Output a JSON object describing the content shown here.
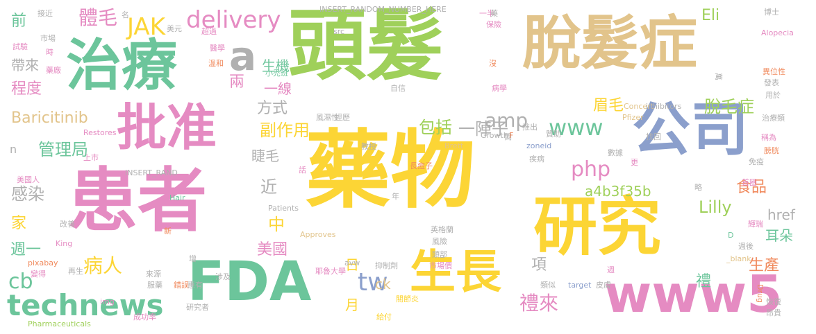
{
  "colors": {
    "green": "#6cc59b",
    "olive": "#9fd05a",
    "tan": "#e2c48b",
    "yellow": "#fcd535",
    "pink": "#e58bc2",
    "blue": "#8b9fcc",
    "orange": "#f08a5d",
    "gray": "#b0b0b0"
  },
  "words": [
    "頭髮",
    "脫髮症",
    "治療",
    "藥物",
    "患者",
    "研究",
    "公司",
    "批准",
    "FDA",
    "生長",
    "www5",
    "a",
    "delivery",
    "JAK",
    "amp",
    "www",
    "php",
    "tw",
    "technews",
    "Baricitinib",
    "副作用",
    "cb",
    "一陣子",
    "管理局",
    "感染",
    "包括",
    "近",
    "Lilly",
    "a4b3f35b",
    "眉毛",
    "脫毛症",
    "食品",
    "生機",
    "方式",
    "睫毛",
    "兩",
    "一線",
    "程度",
    "帶來",
    "前",
    "家",
    "週一",
    "病人",
    "美國",
    "中",
    "日",
    "月",
    "ck",
    "項",
    "禮來",
    "禮",
    "生產",
    "耳朵",
    "href",
    "Eli",
    "體毛",
    "n",
    "INSERT_RANDOM_NUMBER_HERE",
    "INSERT_RAND",
    "接近",
    "市場",
    "試驗",
    "時",
    "藥廠",
    "美元",
    "超過",
    "醫學",
    "溫和",
    "名",
    "小禿班",
    "src",
    "保險",
    "沒",
    "病學",
    "自信",
    "風濕性",
    "經歷",
    "推出",
    "贊助",
    "找回",
    "Concert",
    "Pfizer",
    "inhibitors",
    "Growth",
    "Brett",
    "間",
    "zoneid",
    "疾病",
    "數據",
    "更",
    "略",
    "免疫",
    "首圈",
    "Alopecia",
    "一半",
    "藥",
    "博士",
    "異位性",
    "發表",
    "用於",
    "稱為",
    "膀胱",
    "治療類",
    "萬",
    "教授",
    "長痘子",
    "Restores",
    "上市",
    "話",
    "美國人",
    "改善",
    "King",
    "pixabay",
    "變得",
    "再生",
    "來源",
    "服藥",
    "Hair",
    "Patients",
    "Approves",
    "新",
    "增",
    "抑制劑",
    "英格蘭",
    "風險",
    "頭部",
    "avw",
    "耶魯大學",
    "市場價",
    "週後",
    "輝瑞",
    "_blank",
    "涉及",
    "錯誤",
    "惠有",
    "類似",
    "target",
    "皮膚",
    "Drug",
    "恢復",
    "昂貴",
    "給付",
    "成功率",
    "研究者",
    "img",
    "Pharmaceuticals",
    "關節炎",
    "年",
    "F",
    "D",
    "週"
  ]
}
